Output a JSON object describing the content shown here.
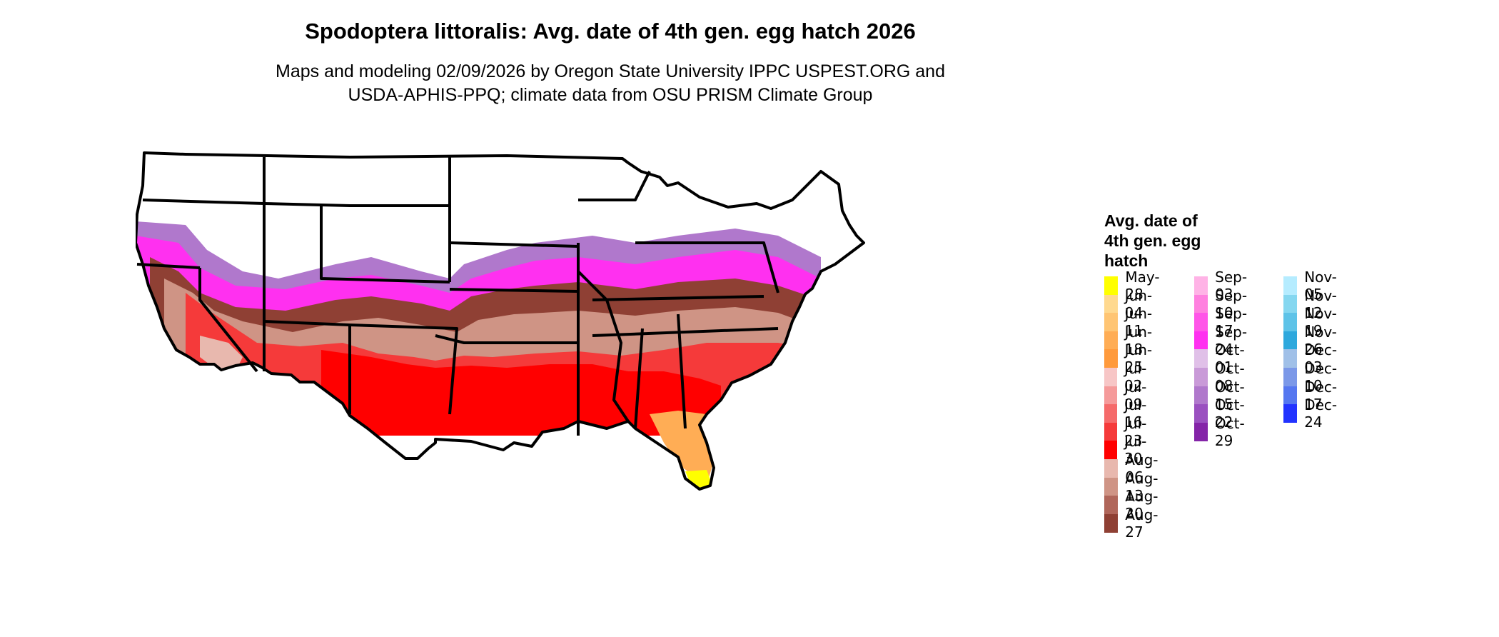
{
  "title": "Spodoptera littoralis: Avg. date of 4th gen. egg hatch 2026",
  "subtitle_line1": "Maps and modeling 02/09/2026 by Oregon State University IPPC USPEST.ORG and",
  "subtitle_line2": "USDA-APHIS-PPQ; climate data from OSU PRISM Climate Group",
  "legend": {
    "title_line1": "Avg. date of",
    "title_line2": "4th gen. egg",
    "title_line3": "hatch",
    "items": [
      {
        "label": "May-28",
        "color": "#ffff00"
      },
      {
        "label": "Jun-04",
        "color": "#ffd98f"
      },
      {
        "label": "Jun-11",
        "color": "#ffc573"
      },
      {
        "label": "Jun-18",
        "color": "#ffad55"
      },
      {
        "label": "Jun-25",
        "color": "#ff9a3c"
      },
      {
        "label": "Jul-02",
        "color": "#f7c6c6"
      },
      {
        "label": "Jul-09",
        "color": "#f59a9a"
      },
      {
        "label": "Jul-16",
        "color": "#f56a6a"
      },
      {
        "label": "Jul-23",
        "color": "#f53a3a"
      },
      {
        "label": "Jul-30",
        "color": "#ff0000"
      },
      {
        "label": "Aug-06",
        "color": "#e8b8ae"
      },
      {
        "label": "Aug-13",
        "color": "#cf9485"
      },
      {
        "label": "Aug-20",
        "color": "#b0665a"
      },
      {
        "label": "Aug-27",
        "color": "#8f4034"
      },
      {
        "label": "Sep-03",
        "color": "#ffb3e6"
      },
      {
        "label": "Sep-10",
        "color": "#ff80df"
      },
      {
        "label": "Sep-17",
        "color": "#ff55e8"
      },
      {
        "label": "Sep-24",
        "color": "#ff30f0"
      },
      {
        "label": "Oct-01",
        "color": "#e0c0e8"
      },
      {
        "label": "Oct-08",
        "color": "#c99ad8"
      },
      {
        "label": "Oct-15",
        "color": "#b078cc"
      },
      {
        "label": "Oct-22",
        "color": "#9a50c0"
      },
      {
        "label": "Oct-29",
        "color": "#8424a8"
      },
      {
        "label": "Nov-05",
        "color": "#b5ecff"
      },
      {
        "label": "Nov-12",
        "color": "#85d7f0"
      },
      {
        "label": "Nov-19",
        "color": "#5ec3e8"
      },
      {
        "label": "Nov-26",
        "color": "#2ea8dd"
      },
      {
        "label": "Dec-03",
        "color": "#a0c0e8"
      },
      {
        "label": "Dec-10",
        "color": "#7b98e8"
      },
      {
        "label": "Dec-17",
        "color": "#5577f0"
      },
      {
        "label": "Dec-24",
        "color": "#2233ff"
      }
    ]
  },
  "map": {
    "state_outline_color": "#000000",
    "land_color": "#ffffff"
  }
}
